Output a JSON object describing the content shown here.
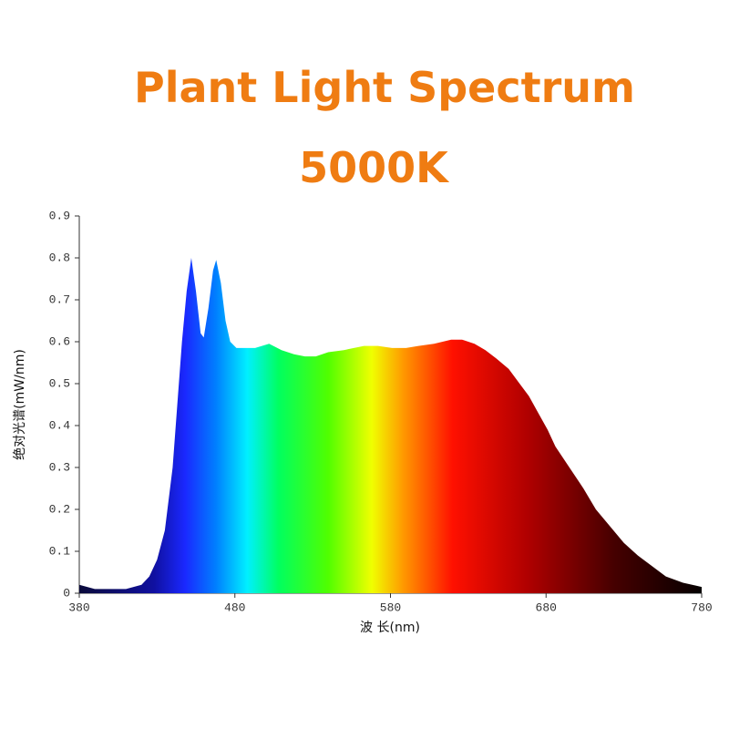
{
  "chart_data": {
    "type": "area",
    "title": "Plant Light Spectrum",
    "subtitle": "5000K",
    "x_label": "波 长(nm)",
    "y_label": "绝对光谱(mW/nm)",
    "xlim": [
      380,
      780
    ],
    "xticks": [
      380,
      480,
      580,
      680,
      780
    ],
    "ylim": [
      0,
      0.9
    ],
    "yticks": [
      0,
      0.1,
      0.2,
      0.3,
      0.4,
      0.5,
      0.6,
      0.7,
      0.8,
      0.9
    ],
    "x": [
      380,
      390,
      400,
      410,
      420,
      425,
      430,
      435,
      440,
      443,
      446,
      449,
      452,
      455,
      458,
      460,
      463,
      466,
      468,
      471,
      474,
      477,
      481,
      486,
      493,
      502,
      510,
      518,
      525,
      532,
      540,
      550,
      563,
      572,
      581,
      590,
      598,
      608,
      619,
      626,
      634,
      641,
      648,
      656,
      663,
      669,
      675,
      681,
      686,
      695,
      704,
      712,
      721,
      730,
      739,
      748,
      757,
      768,
      780
    ],
    "values": [
      0.02,
      0.01,
      0.01,
      0.01,
      0.02,
      0.04,
      0.08,
      0.15,
      0.3,
      0.45,
      0.6,
      0.72,
      0.8,
      0.72,
      0.62,
      0.61,
      0.68,
      0.77,
      0.795,
      0.74,
      0.65,
      0.6,
      0.585,
      0.585,
      0.585,
      0.595,
      0.58,
      0.57,
      0.565,
      0.565,
      0.575,
      0.58,
      0.59,
      0.59,
      0.585,
      0.585,
      0.59,
      0.595,
      0.605,
      0.605,
      0.595,
      0.58,
      0.56,
      0.535,
      0.5,
      0.47,
      0.43,
      0.39,
      0.35,
      0.3,
      0.25,
      0.2,
      0.16,
      0.12,
      0.09,
      0.065,
      0.04,
      0.025,
      0.015
    ]
  }
}
